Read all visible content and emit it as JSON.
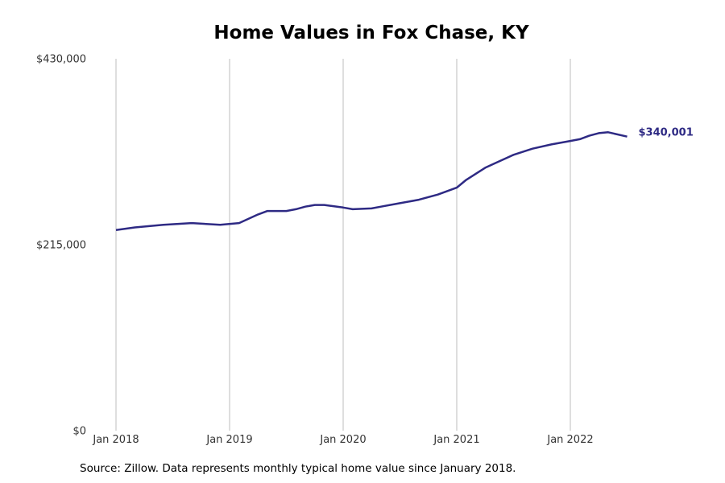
{
  "chart_data": {
    "type": "line",
    "title": "Home Values in Fox Chase, KY",
    "xlabel": "",
    "ylabel": "",
    "ylim": [
      0,
      430000
    ],
    "y_ticks": [
      {
        "value": 0,
        "label": "$0"
      },
      {
        "value": 215000,
        "label": "$215,000"
      },
      {
        "value": 430000,
        "label": "$430,000"
      }
    ],
    "x_ticks": [
      {
        "value": "2018-01",
        "label": "Jan 2018"
      },
      {
        "value": "2019-01",
        "label": "Jan 2019"
      },
      {
        "value": "2020-01",
        "label": "Jan 2020"
      },
      {
        "value": "2021-01",
        "label": "Jan 2021"
      },
      {
        "value": "2022-01",
        "label": "Jan 2022"
      }
    ],
    "grid": "vertical",
    "series": [
      {
        "color": "#2e2a84",
        "end_label": "$340,001",
        "points": [
          {
            "x": "2018-01",
            "y": 232000
          },
          {
            "x": "2018-03",
            "y": 235000
          },
          {
            "x": "2018-06",
            "y": 238000
          },
          {
            "x": "2018-09",
            "y": 240000
          },
          {
            "x": "2018-12",
            "y": 238000
          },
          {
            "x": "2019-02",
            "y": 240000
          },
          {
            "x": "2019-04",
            "y": 250000
          },
          {
            "x": "2019-05",
            "y": 254000
          },
          {
            "x": "2019-07",
            "y": 254000
          },
          {
            "x": "2019-08",
            "y": 256000
          },
          {
            "x": "2019-09",
            "y": 259000
          },
          {
            "x": "2019-10",
            "y": 261000
          },
          {
            "x": "2019-11",
            "y": 261000
          },
          {
            "x": "2020-01",
            "y": 258000
          },
          {
            "x": "2020-02",
            "y": 256000
          },
          {
            "x": "2020-04",
            "y": 257000
          },
          {
            "x": "2020-05",
            "y": 259000
          },
          {
            "x": "2020-07",
            "y": 263000
          },
          {
            "x": "2020-09",
            "y": 267000
          },
          {
            "x": "2020-11",
            "y": 273000
          },
          {
            "x": "2021-01",
            "y": 281000
          },
          {
            "x": "2021-02",
            "y": 290000
          },
          {
            "x": "2021-04",
            "y": 304000
          },
          {
            "x": "2021-05",
            "y": 309000
          },
          {
            "x": "2021-07",
            "y": 319000
          },
          {
            "x": "2021-09",
            "y": 326000
          },
          {
            "x": "2021-11",
            "y": 331000
          },
          {
            "x": "2022-01",
            "y": 335000
          },
          {
            "x": "2022-02",
            "y": 337000
          },
          {
            "x": "2022-03",
            "y": 341000
          },
          {
            "x": "2022-04",
            "y": 344000
          },
          {
            "x": "2022-05",
            "y": 345000
          },
          {
            "x": "2022-07",
            "y": 340001
          }
        ]
      }
    ]
  },
  "source_note": "Source: Zillow. Data represents monthly typical home value since January 2018."
}
